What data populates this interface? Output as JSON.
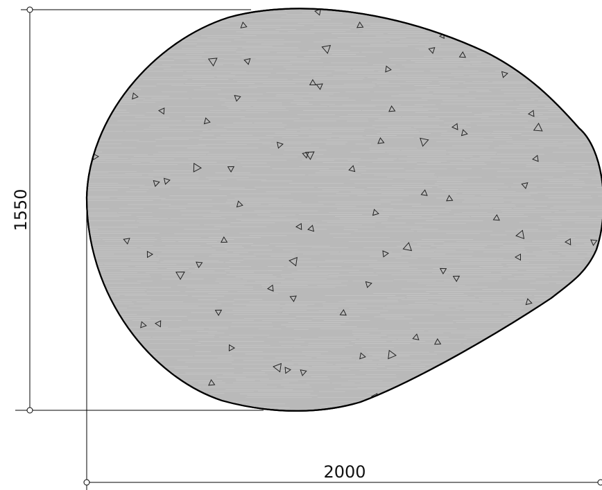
{
  "drawing": {
    "dimensions": {
      "height_label": "1550",
      "width_label": "2000"
    },
    "colors": {
      "fill": "#b9b9b9",
      "outline": "#000000",
      "hatch": "#d2d2d2",
      "background": "#ffffff"
    },
    "hatch_pattern": "horizontal-streaks",
    "aggregate_symbol": "triangle"
  }
}
